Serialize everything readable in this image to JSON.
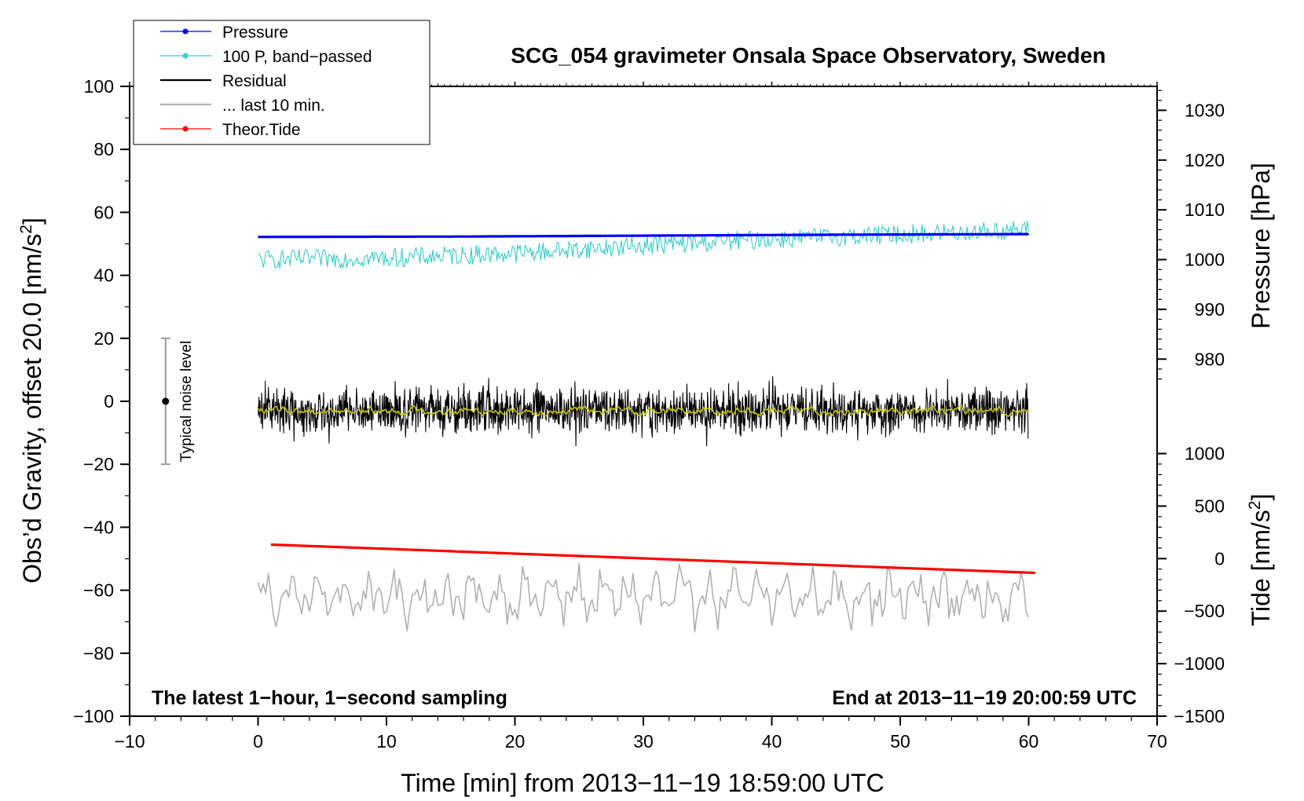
{
  "chart_data": {
    "type": "line",
    "title": "SCG_054 gravimeter Onsala Space Observatory, Sweden",
    "xlabel": "Time [min] from 2013−11−19 18:59:00 UTC",
    "ylabel_main": "Obs’d Gravity, offset 20.0 [nm/s",
    "ylabel_main_sup": "2",
    "ylabel_main_end": "]",
    "ylabel_pressure": "Pressure [hPa]",
    "ylabel_tide": "Tide [nm/s",
    "ylabel_tide_sup": "2",
    "ylabel_tide_end": "]",
    "xlim": [
      -10,
      70
    ],
    "ylim": [
      -100,
      100
    ],
    "x_ticks": [
      -10,
      0,
      10,
      20,
      30,
      40,
      50,
      60,
      70
    ],
    "x_tick_labels": [
      "−10",
      "0",
      "10",
      "20",
      "30",
      "40",
      "50",
      "60",
      "70"
    ],
    "y_ticks": [
      -100,
      -80,
      -60,
      -40,
      -20,
      0,
      20,
      40,
      60,
      80,
      100
    ],
    "y_tick_labels": [
      "−100",
      "−80",
      "−60",
      "−40",
      "−20",
      "0",
      "20",
      "40",
      "60",
      "80",
      "100"
    ],
    "pressure_axis": {
      "ticks": [
        980,
        990,
        1000,
        1010,
        1020,
        1030
      ],
      "tick_labels": [
        "980",
        "990",
        "1000",
        "1010",
        "1020",
        "1030"
      ],
      "main_equiv": [
        [
          980,
          13.4
        ],
        [
          1030,
          92.4
        ]
      ]
    },
    "tide_axis": {
      "ticks": [
        -1500,
        -1000,
        -500,
        0,
        500,
        1000
      ],
      "tick_labels": [
        "−1500",
        "−1000",
        "−500",
        "0",
        "500",
        "1000"
      ],
      "main_equiv": [
        [
          -1500,
          -100
        ],
        [
          1000,
          -16.6
        ]
      ]
    },
    "legend_position": "top-left",
    "legend": [
      {
        "label": "Pressure",
        "color": "#0000ff",
        "marker": true
      },
      {
        "label": "100 P, band−passed",
        "color": "#33cccc",
        "marker": true
      },
      {
        "label": "Residual",
        "color": "#000000",
        "marker": false
      },
      {
        "label": "... last 10 min.",
        "color": "#b0b0b0",
        "marker": false
      },
      {
        "label": "Theor.Tide",
        "color": "#ff0000",
        "marker": true
      }
    ],
    "series": [
      {
        "name": "Pressure",
        "color": "#0000ff",
        "x": [
          0,
          15,
          30,
          45,
          60
        ],
        "values": [
          52.2,
          52.3,
          52.6,
          52.9,
          53.1
        ]
      },
      {
        "name": "100 P, band-passed",
        "color": "#33cccc",
        "x": [
          0,
          10,
          20,
          30,
          40,
          50,
          60
        ],
        "values": [
          45.0,
          45.5,
          47.0,
          49.5,
          51.5,
          53.0,
          54.5
        ],
        "noise_amplitude": 3.0
      },
      {
        "name": "Residual",
        "color": "#000000",
        "x": [
          0,
          60
        ],
        "values": [
          -3,
          -3
        ],
        "noise_amplitude": 10
      },
      {
        "name": "Residual smoothed",
        "color": "#c8c800",
        "x": [
          0,
          60
        ],
        "values": [
          -3,
          -3
        ],
        "noise_amplitude": 1.0
      },
      {
        "name": "... last 10 min.",
        "color": "#b0b0b0",
        "x": [
          0,
          60
        ],
        "values": [
          -62,
          -62
        ],
        "noise_amplitude": 8
      },
      {
        "name": "Theor.Tide",
        "color": "#ff0000",
        "x": [
          1,
          60.5
        ],
        "values": [
          -45.5,
          -54.5
        ]
      }
    ],
    "noise_bar": {
      "label": "Typical noise level",
      "x": -7.2,
      "low": -20,
      "high": 20,
      "center": 0
    },
    "annotations": {
      "bottom_left": "The latest 1−hour, 1−second sampling",
      "bottom_right": "End at 2013−11−19 20:00:59 UTC"
    },
    "grid": false
  }
}
